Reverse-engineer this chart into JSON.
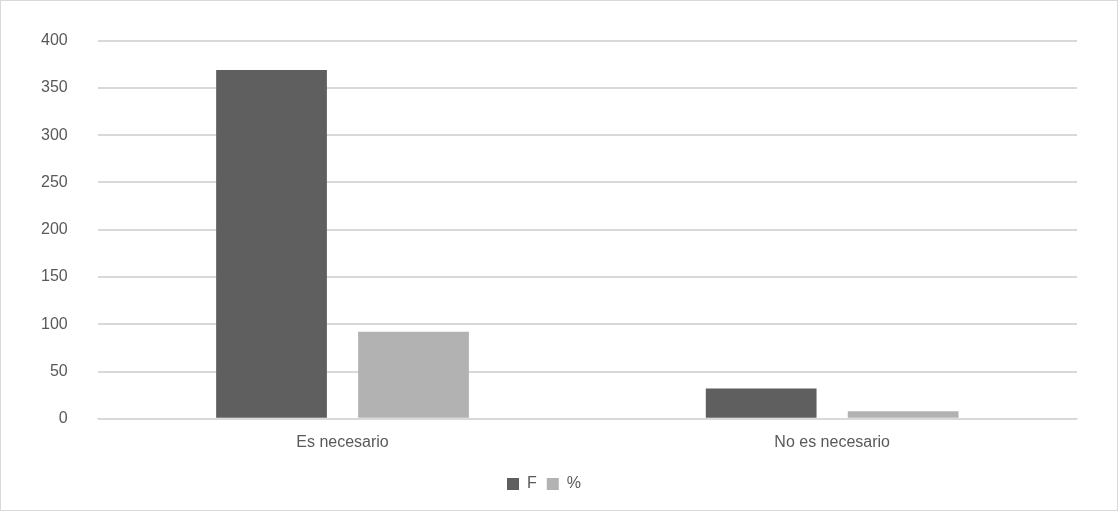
{
  "chart_data": {
    "type": "bar",
    "categories": [
      "Es necesario",
      "No es necesario"
    ],
    "series": [
      {
        "name": "F",
        "color": "#5f5f5f",
        "values": [
          369,
          32
        ]
      },
      {
        "name": "%",
        "color": "#b2b2b2",
        "values": [
          92,
          8
        ]
      }
    ],
    "ylim": [
      0,
      400
    ],
    "yticks": [
      0,
      50,
      100,
      150,
      200,
      250,
      300,
      350,
      400
    ],
    "grid": "y",
    "legend": "bottom"
  }
}
